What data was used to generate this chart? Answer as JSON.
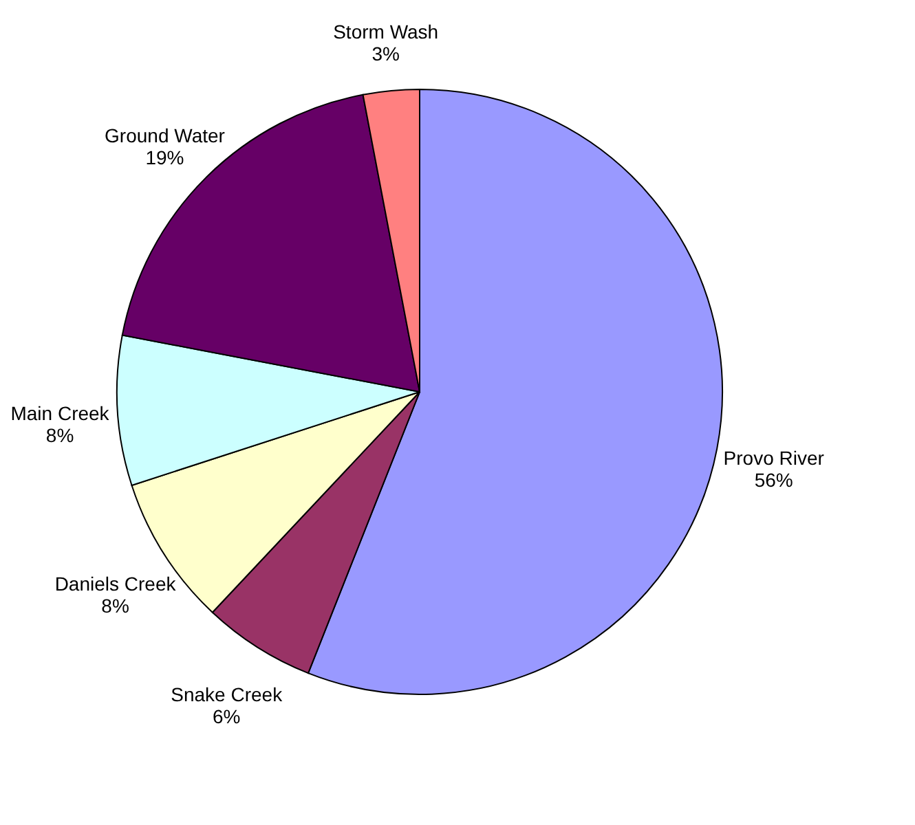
{
  "chart_data": {
    "type": "pie",
    "categories": [
      "Provo River",
      "Snake Creek",
      "Daniels Creek",
      "Main Creek",
      "Ground Water",
      "Storm Wash"
    ],
    "values": [
      56,
      6,
      8,
      8,
      19,
      3
    ],
    "value_labels": [
      "56%",
      "6%",
      "8%",
      "8%",
      "19%",
      "3%"
    ],
    "colors": [
      "#9999ff",
      "#993366",
      "#ffffcc",
      "#ccffff",
      "#660066",
      "#ff8080"
    ],
    "legend": false
  }
}
